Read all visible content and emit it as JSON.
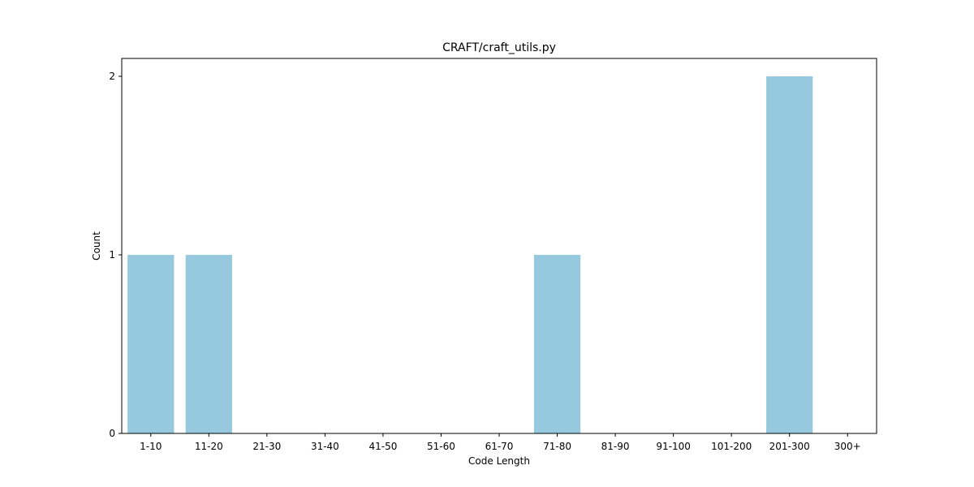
{
  "chart_data": {
    "type": "bar",
    "title": "CRAFT/craft_utils.py",
    "xlabel": "Code Length",
    "ylabel": "Count",
    "categories": [
      "1-10",
      "11-20",
      "21-30",
      "31-40",
      "41-50",
      "51-60",
      "61-70",
      "71-80",
      "81-90",
      "91-100",
      "101-200",
      "201-300",
      "300+"
    ],
    "values": [
      1,
      1,
      0,
      0,
      0,
      0,
      0,
      1,
      0,
      0,
      0,
      2,
      0
    ],
    "ylim": [
      0,
      2.1
    ],
    "yticks": [
      0,
      1,
      2
    ],
    "grid": false,
    "legend": "none",
    "bar_color": "#96c9de"
  }
}
